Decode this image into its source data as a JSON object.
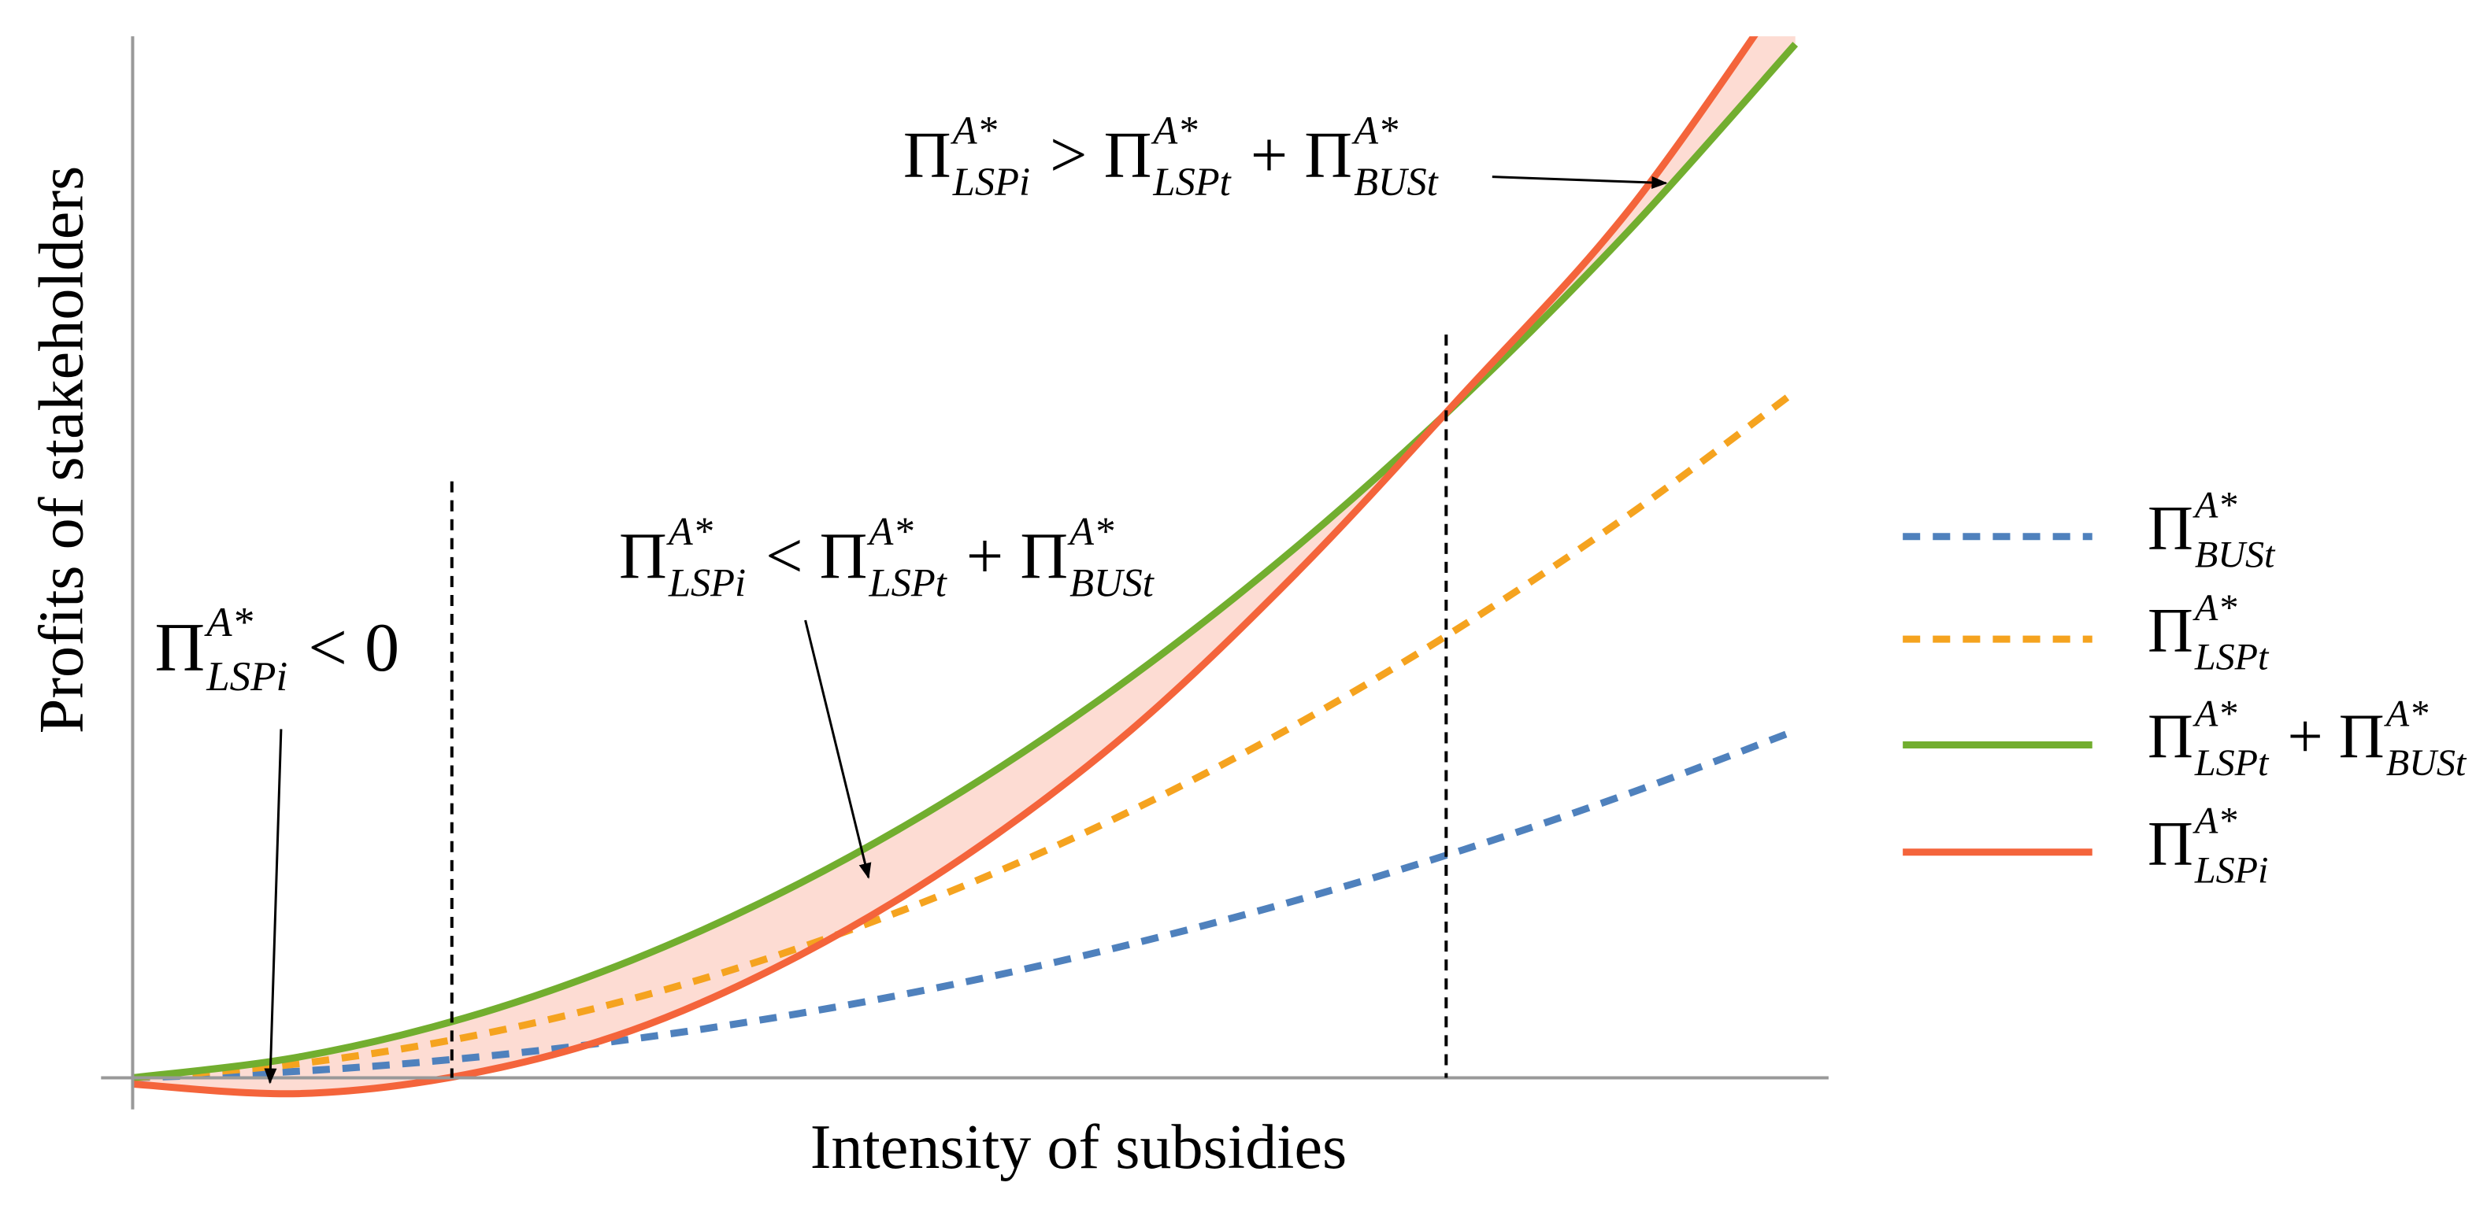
{
  "chart_data": {
    "type": "line",
    "x_label": "Intensity of subsidies",
    "y_label": "Profits of stakeholders",
    "x": [
      0,
      1,
      2,
      3,
      4,
      5,
      6,
      7,
      8,
      9,
      10
    ],
    "xlim": [
      0,
      10.2
    ],
    "ylim": [
      -0.2,
      6.6
    ],
    "series": [
      {
        "name": [
          {
            "text": "Π",
            "sup": "A*",
            "sub": "BUSt"
          }
        ],
        "color": "#4f81bd",
        "dashed": true,
        "values": [
          0,
          0.042,
          0.124,
          0.245,
          0.406,
          0.606,
          0.846,
          1.125,
          1.444,
          1.802,
          2.2
        ]
      },
      {
        "name": [
          {
            "text": "Π",
            "sup": "A*",
            "sub": "LSPt"
          }
        ],
        "color": "#f5a31f",
        "dashed": true,
        "values": [
          0,
          0.09,
          0.256,
          0.5,
          0.82,
          1.217,
          1.69,
          2.24,
          2.866,
          3.568,
          4.35
        ]
      },
      {
        "name": [
          {
            "text": "Π",
            "sup": "A*",
            "sub": "LSPt"
          },
          {
            "text": " + "
          },
          {
            "text": "Π",
            "sup": "A*",
            "sub": "BUSt"
          }
        ],
        "color": "#72ae2f",
        "dashed": false,
        "values": [
          0,
          0.132,
          0.38,
          0.745,
          1.226,
          1.823,
          2.536,
          3.365,
          4.31,
          5.37,
          6.55
        ]
      },
      {
        "name": [
          {
            "text": "Π",
            "sup": "A*",
            "sub": "LSPi"
          }
        ],
        "color": "#f4643b",
        "dashed": false,
        "values": [
          -0.04,
          -0.1,
          0.02,
          0.3,
          0.77,
          1.4,
          2.2,
          3.2,
          4.33,
          5.5,
          6.98
        ]
      }
    ],
    "gap_fill_color": "#fddcd3",
    "reference_lines": [
      1.92,
      7.9
    ],
    "annotations": [
      {
        "parts": [
          {
            "text": "Π",
            "sup": "A*",
            "sub": "LSPi"
          },
          {
            "text": " < 0"
          }
        ]
      },
      {
        "parts": [
          {
            "text": "Π",
            "sup": "A*",
            "sub": "LSPi"
          },
          {
            "text": " < "
          },
          {
            "text": "Π",
            "sup": "A*",
            "sub": "LSPt"
          },
          {
            "text": " + "
          },
          {
            "text": "Π",
            "sup": "A*",
            "sub": "BUSt"
          }
        ]
      },
      {
        "parts": [
          {
            "text": "Π",
            "sup": "A*",
            "sub": "LSPi"
          },
          {
            "text": " > "
          },
          {
            "text": "Π",
            "sup": "A*",
            "sub": "LSPt"
          },
          {
            "text": " + "
          },
          {
            "text": "Π",
            "sup": "A*",
            "sub": "BUSt"
          }
        ]
      }
    ]
  }
}
